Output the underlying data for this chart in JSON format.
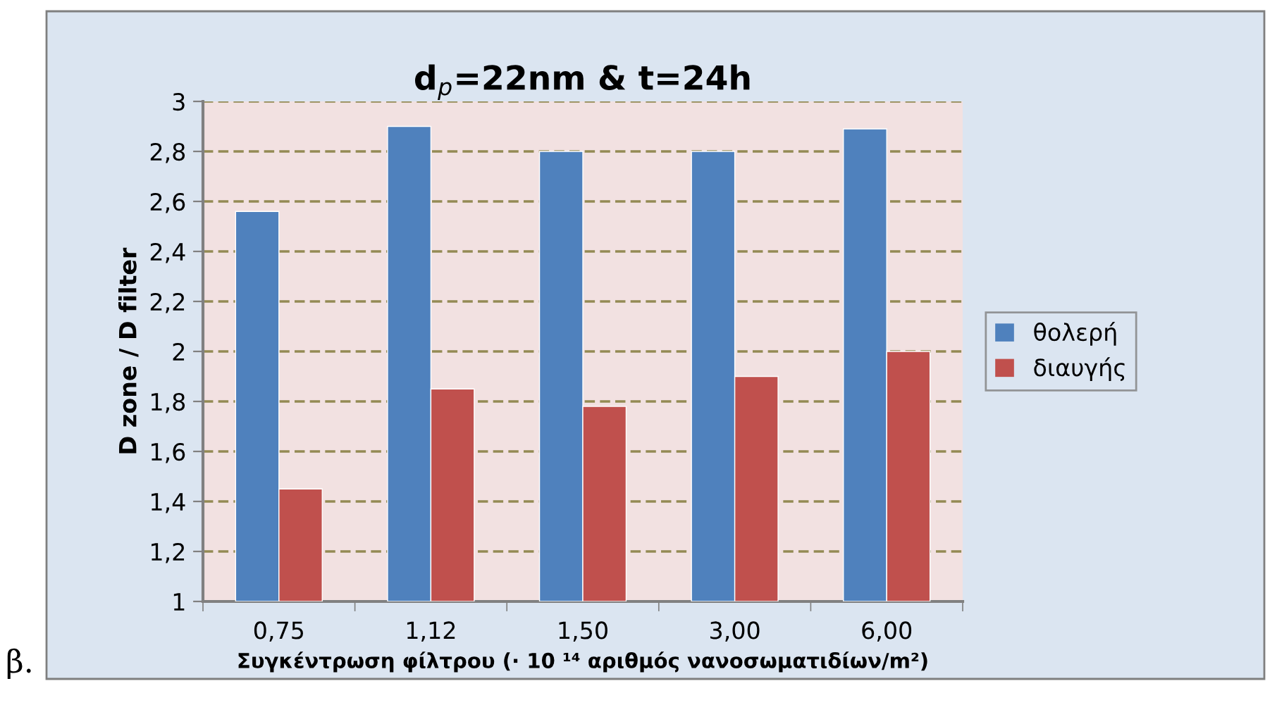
{
  "chart_data": {
    "type": "bar",
    "title": "d$_{p}$=22nm & t=24h",
    "xlabel": "Συγκέντρωση φίλτρου (· 10 ¹⁴ αριθμός νανοσωματιδίων/m²)",
    "ylabel": "D zone / D filter",
    "categories": [
      "0,75",
      "1,12",
      "1,50",
      "3,00",
      "6,00"
    ],
    "series": [
      {
        "name": "θολερή",
        "color": "#4f81bd",
        "values": [
          2.56,
          2.9,
          2.8,
          2.8,
          2.89
        ]
      },
      {
        "name": "διαυγής",
        "color": "#c0504d",
        "values": [
          1.45,
          1.85,
          1.78,
          1.9,
          2.0
        ]
      }
    ],
    "ylim": [
      1,
      3
    ],
    "yticks": [
      1,
      {
        "value": 1.2,
        "label": "1,2"
      },
      {
        "value": 1.4,
        "label": "1,4"
      },
      {
        "value": 1.6,
        "label": "1,6"
      },
      {
        "value": 1.8,
        "label": "1,8"
      },
      2,
      {
        "value": 2.2,
        "label": "2,2"
      },
      {
        "value": 2.4,
        "label": "2,4"
      },
      {
        "value": 2.6,
        "label": "2,6"
      },
      {
        "value": 2.8,
        "label": "2,8"
      },
      3
    ],
    "grid": "y",
    "legend": "right",
    "annotations": [
      "β."
    ]
  }
}
